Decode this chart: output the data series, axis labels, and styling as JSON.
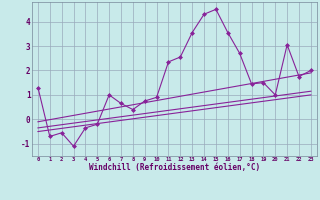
{
  "x_data": [
    0,
    1,
    2,
    3,
    4,
    5,
    6,
    7,
    8,
    9,
    10,
    11,
    12,
    13,
    14,
    15,
    16,
    17,
    18,
    19,
    20,
    21,
    22,
    23
  ],
  "y_data": [
    1.3,
    -0.7,
    -0.55,
    -1.1,
    -0.35,
    -0.2,
    1.0,
    0.65,
    0.4,
    0.75,
    0.9,
    2.35,
    2.55,
    3.55,
    4.3,
    4.5,
    3.55,
    2.7,
    1.45,
    1.5,
    1.0,
    3.05,
    1.75,
    2.0
  ],
  "line_color": "#882299",
  "marker_color": "#882299",
  "bg_color": "#c8eaea",
  "grid_color": "#99aabb",
  "xlabel": "Windchill (Refroidissement éolien,°C)",
  "ylim": [
    -1.5,
    4.8
  ],
  "xlim": [
    -0.5,
    23.5
  ],
  "yticks": [
    -1,
    0,
    1,
    2,
    3,
    4
  ],
  "xticks": [
    0,
    1,
    2,
    3,
    4,
    5,
    6,
    7,
    8,
    9,
    10,
    11,
    12,
    13,
    14,
    15,
    16,
    17,
    18,
    19,
    20,
    21,
    22,
    23
  ],
  "reg_line1_x": [
    0,
    23
  ],
  "reg_line1_y": [
    -0.5,
    1.0
  ],
  "reg_line2_x": [
    0,
    23
  ],
  "reg_line2_y": [
    -0.35,
    1.15
  ],
  "reg_line3_x": [
    0,
    23
  ],
  "reg_line3_y": [
    -0.1,
    1.9
  ]
}
